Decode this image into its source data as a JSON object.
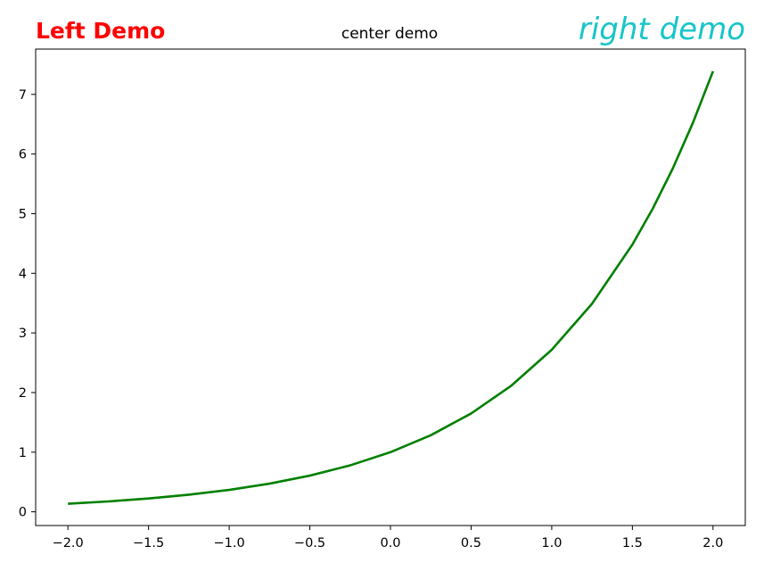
{
  "chart_data": {
    "type": "line",
    "titles": {
      "left": "Left Demo",
      "center": "center demo",
      "right": "right demo"
    },
    "title_colors": {
      "left": "#ff0000",
      "center": "#000000",
      "right": "#17c5c8"
    },
    "xlabel": "",
    "ylabel": "",
    "xlim": [
      -2.2,
      2.2
    ],
    "ylim": [
      -0.23,
      7.76
    ],
    "x_ticks": [
      -2.0,
      -1.5,
      -1.0,
      -0.5,
      0.0,
      0.5,
      1.0,
      1.5,
      2.0
    ],
    "x_tick_labels": [
      "−2.0",
      "−1.5",
      "−1.0",
      "−0.5",
      "0.0",
      "0.5",
      "1.0",
      "1.5",
      "2.0"
    ],
    "y_ticks": [
      0,
      1,
      2,
      3,
      4,
      5,
      6,
      7
    ],
    "y_tick_labels": [
      "0",
      "1",
      "2",
      "3",
      "4",
      "5",
      "6",
      "7"
    ],
    "grid": false,
    "series": [
      {
        "color": "#008000",
        "x": [
          -2.0,
          -1.75,
          -1.5,
          -1.25,
          -1.0,
          -0.75,
          -0.5,
          -0.25,
          0.0,
          0.25,
          0.5,
          0.75,
          1.0,
          1.25,
          1.5,
          1.625,
          1.75,
          1.875,
          2.0
        ],
        "y": [
          0.135,
          0.174,
          0.223,
          0.287,
          0.368,
          0.472,
          0.607,
          0.779,
          1.0,
          1.284,
          1.649,
          2.117,
          2.718,
          3.49,
          4.482,
          5.078,
          5.755,
          6.521,
          7.389
        ]
      }
    ]
  }
}
